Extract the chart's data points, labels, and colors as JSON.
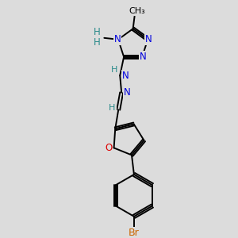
{
  "bg_color": "#dcdcdc",
  "bond_color": "#000000",
  "n_color": "#0000dd",
  "o_color": "#dd0000",
  "br_color": "#cc6600",
  "h_color": "#2a8a8a",
  "n_label": "N",
  "o_label": "O",
  "br_label": "Br",
  "h_label": "H",
  "ch3_label": "CH₃",
  "figsize": [
    3.0,
    3.0
  ],
  "dpi": 100,
  "lw": 1.4,
  "fs": 8.5
}
